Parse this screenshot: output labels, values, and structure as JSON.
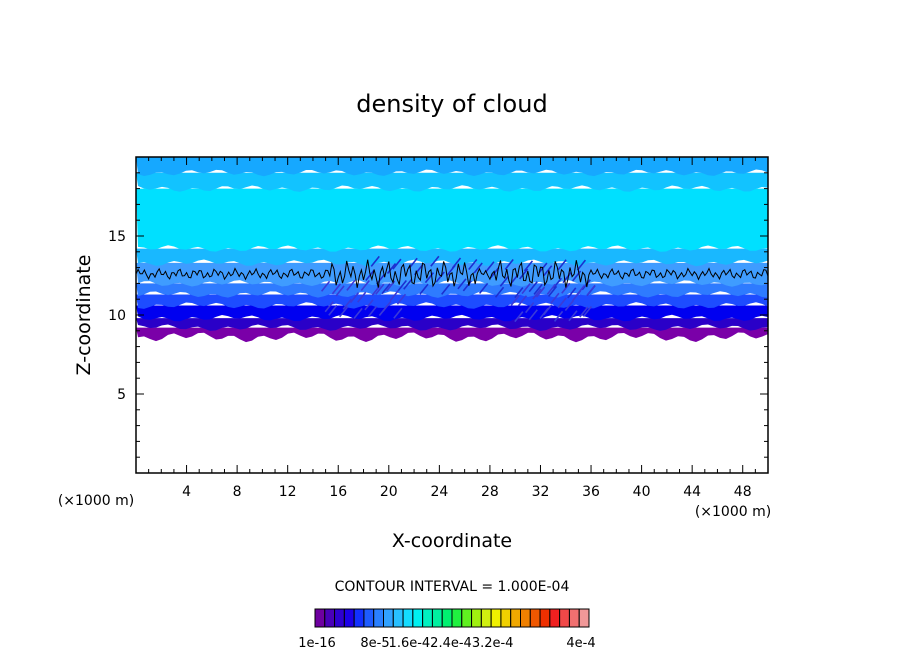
{
  "chart_data": {
    "type": "heatmap",
    "title": "density of cloud",
    "xlabel": "X-coordinate",
    "ylabel": "Z-coordinate",
    "x_unit": "(×1000 m)",
    "y_unit": "(×1000 m)",
    "xlim": [
      0,
      50
    ],
    "ylim": [
      0,
      20
    ],
    "x_ticks": [
      4,
      8,
      12,
      16,
      20,
      24,
      28,
      32,
      36,
      40,
      44,
      48
    ],
    "y_ticks": [
      5,
      10,
      15
    ],
    "contour_interval_text": "CONTOUR INTERVAL = 1.000E-04",
    "contour_line_level": 12.6,
    "cloud_bands": [
      {
        "z_bottom": 8.6,
        "z_top": 9.2,
        "color": "#7a00a8"
      },
      {
        "z_bottom": 9.2,
        "z_top": 9.8,
        "color": "#2a00c8"
      },
      {
        "z_bottom": 9.8,
        "z_top": 10.6,
        "color": "#0000f0"
      },
      {
        "z_bottom": 10.6,
        "z_top": 11.3,
        "color": "#1d4cff"
      },
      {
        "z_bottom": 11.3,
        "z_top": 12.0,
        "color": "#2e7bff"
      },
      {
        "z_bottom": 12.0,
        "z_top": 13.3,
        "color": "#3f9cff"
      },
      {
        "z_bottom": 13.3,
        "z_top": 14.2,
        "color": "#19b8ff"
      },
      {
        "z_bottom": 14.2,
        "z_top": 18.0,
        "color": "#00e0ff"
      },
      {
        "z_bottom": 18.0,
        "z_top": 19.0,
        "color": "#12c3ff"
      },
      {
        "z_bottom": 19.0,
        "z_top": 20.0,
        "color": "#16a8ff"
      }
    ],
    "colorbar": {
      "colors": [
        "#6e00a0",
        "#4a00b8",
        "#2f00d0",
        "#1c00e8",
        "#1230ff",
        "#1e5cff",
        "#2a80ff",
        "#31a2ff",
        "#28c0ff",
        "#14dcff",
        "#00f0f0",
        "#00f0c0",
        "#00f0a0",
        "#00f070",
        "#20f040",
        "#60f020",
        "#a0f010",
        "#d0f010",
        "#f0f000",
        "#f0d000",
        "#f0a800",
        "#f08000",
        "#f05800",
        "#f03000",
        "#f02020",
        "#f04848",
        "#f07070",
        "#f09898"
      ],
      "labels": [
        "1e-16",
        "8e-5",
        "1.6e-4",
        "2.4e-4",
        "3.2e-4",
        "4e-4"
      ],
      "label_text": [
        "1e-16",
        "8e-5",
        "1.6e-42.4e-43.2e-4",
        "4e-4"
      ]
    }
  }
}
